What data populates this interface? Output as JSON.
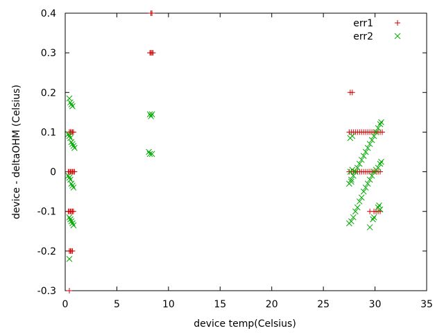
{
  "chart_data": {
    "type": "scatter",
    "title": "",
    "xlabel": "device temp(Celsius)",
    "ylabel": "device - deltaOHM (Celsius)",
    "xlim": [
      0,
      35
    ],
    "ylim": [
      -0.3,
      0.4
    ],
    "xticks": [
      0,
      5,
      10,
      15,
      20,
      25,
      30,
      35
    ],
    "yticks": [
      -0.3,
      -0.2,
      -0.1,
      0,
      0.1,
      0.2,
      0.3,
      0.4
    ],
    "xtick_labels": [
      "0",
      "5",
      "10",
      "15",
      "20",
      "25",
      "30",
      "35"
    ],
    "ytick_labels": [
      "-0.3",
      "-0.2",
      "-0.1",
      "0",
      "0.1",
      "0.2",
      "0.3",
      "0.4"
    ],
    "grid": false,
    "legend_position": "top-right",
    "series": [
      {
        "name": "err1",
        "marker": "plus",
        "color": "#cc0000",
        "points": [
          [
            0.4,
            -0.3
          ],
          [
            0.4,
            -0.2
          ],
          [
            0.5,
            -0.2
          ],
          [
            0.6,
            -0.2
          ],
          [
            0.7,
            -0.2
          ],
          [
            0.3,
            -0.1
          ],
          [
            0.4,
            -0.1
          ],
          [
            0.5,
            -0.1
          ],
          [
            0.6,
            -0.1
          ],
          [
            0.7,
            -0.1
          ],
          [
            0.8,
            -0.1
          ],
          [
            0.3,
            0
          ],
          [
            0.4,
            0
          ],
          [
            0.5,
            0
          ],
          [
            0.6,
            0
          ],
          [
            0.7,
            0
          ],
          [
            0.8,
            0
          ],
          [
            0.9,
            0
          ],
          [
            0.4,
            0.1
          ],
          [
            0.5,
            0.1
          ],
          [
            0.6,
            0.1
          ],
          [
            0.7,
            0.1
          ],
          [
            0.8,
            0.1
          ],
          [
            8.2,
            0.3
          ],
          [
            8.3,
            0.3
          ],
          [
            8.4,
            0.3
          ],
          [
            8.5,
            0.3
          ],
          [
            8.3,
            0.4
          ],
          [
            8.4,
            0.4
          ],
          [
            27.6,
            0.2
          ],
          [
            27.8,
            0.2
          ],
          [
            27.5,
            0.1
          ],
          [
            27.7,
            0.1
          ],
          [
            27.9,
            0.1
          ],
          [
            28.1,
            0.1
          ],
          [
            28.3,
            0.1
          ],
          [
            28.5,
            0.1
          ],
          [
            28.7,
            0.1
          ],
          [
            28.9,
            0.1
          ],
          [
            29.1,
            0.1
          ],
          [
            29.3,
            0.1
          ],
          [
            29.5,
            0.1
          ],
          [
            29.7,
            0.1
          ],
          [
            29.9,
            0.1
          ],
          [
            30.1,
            0.1
          ],
          [
            30.3,
            0.1
          ],
          [
            30.5,
            0.1
          ],
          [
            30.7,
            0.1
          ],
          [
            27.5,
            0
          ],
          [
            27.7,
            0
          ],
          [
            27.9,
            0
          ],
          [
            28.1,
            0
          ],
          [
            28.3,
            0
          ],
          [
            28.5,
            0
          ],
          [
            28.7,
            0
          ],
          [
            28.9,
            0
          ],
          [
            29.1,
            0
          ],
          [
            29.3,
            0
          ],
          [
            29.5,
            0
          ],
          [
            29.7,
            0
          ],
          [
            29.9,
            0
          ],
          [
            30.1,
            0
          ],
          [
            30.3,
            0
          ],
          [
            30.5,
            0
          ],
          [
            29.5,
            -0.1
          ],
          [
            29.9,
            -0.1
          ],
          [
            30.1,
            -0.1
          ],
          [
            30.3,
            -0.1
          ],
          [
            30.5,
            -0.1
          ]
        ]
      },
      {
        "name": "err2",
        "marker": "cross",
        "color": "#00aa00",
        "points": [
          [
            0.4,
            -0.22
          ],
          [
            0.4,
            0.185
          ],
          [
            0.5,
            0.175
          ],
          [
            0.6,
            0.17
          ],
          [
            0.7,
            0.165
          ],
          [
            0.3,
            0.095
          ],
          [
            0.4,
            0.09
          ],
          [
            0.5,
            0.085
          ],
          [
            0.6,
            0.075
          ],
          [
            0.7,
            0.07
          ],
          [
            0.8,
            0.065
          ],
          [
            0.9,
            0.06
          ],
          [
            0.3,
            -0.01
          ],
          [
            0.4,
            -0.015
          ],
          [
            0.5,
            -0.02
          ],
          [
            0.6,
            -0.03
          ],
          [
            0.7,
            -0.035
          ],
          [
            0.8,
            -0.04
          ],
          [
            0.4,
            -0.115
          ],
          [
            0.5,
            -0.12
          ],
          [
            0.6,
            -0.125
          ],
          [
            0.7,
            -0.13
          ],
          [
            0.8,
            -0.135
          ],
          [
            8.2,
            0.145
          ],
          [
            8.4,
            0.145
          ],
          [
            8.3,
            0.14
          ],
          [
            8.1,
            0.05
          ],
          [
            8.2,
            0.045
          ],
          [
            8.4,
            0.045
          ],
          [
            27.6,
            0.085
          ],
          [
            27.8,
            0.09
          ],
          [
            27.6,
            0.0
          ],
          [
            27.8,
            0.005
          ],
          [
            27.7,
            -0.025
          ],
          [
            27.5,
            -0.03
          ],
          [
            27.7,
            -0.02
          ],
          [
            27.9,
            -0.01
          ],
          [
            28.1,
            0.0
          ],
          [
            28.3,
            0.01
          ],
          [
            28.5,
            0.02
          ],
          [
            28.7,
            0.03
          ],
          [
            28.9,
            0.04
          ],
          [
            29.1,
            0.05
          ],
          [
            29.3,
            0.06
          ],
          [
            29.5,
            0.07
          ],
          [
            29.7,
            0.08
          ],
          [
            29.9,
            0.09
          ],
          [
            30.1,
            0.1
          ],
          [
            30.3,
            0.11
          ],
          [
            30.5,
            0.12
          ],
          [
            30.6,
            0.125
          ],
          [
            27.5,
            -0.13
          ],
          [
            27.7,
            -0.125
          ],
          [
            27.9,
            -0.115
          ],
          [
            28.1,
            -0.1
          ],
          [
            28.3,
            -0.09
          ],
          [
            28.5,
            -0.075
          ],
          [
            28.7,
            -0.065
          ],
          [
            28.9,
            -0.05
          ],
          [
            29.1,
            -0.04
          ],
          [
            29.3,
            -0.03
          ],
          [
            29.5,
            -0.02
          ],
          [
            29.7,
            -0.01
          ],
          [
            29.9,
            0.0
          ],
          [
            30.1,
            0.005
          ],
          [
            30.3,
            0.01
          ],
          [
            30.5,
            0.02
          ],
          [
            30.6,
            0.025
          ],
          [
            29.5,
            -0.14
          ],
          [
            29.8,
            -0.12
          ],
          [
            29.9,
            -0.115
          ],
          [
            30.3,
            -0.09
          ],
          [
            30.4,
            -0.085
          ],
          [
            30.5,
            -0.095
          ]
        ]
      }
    ]
  }
}
